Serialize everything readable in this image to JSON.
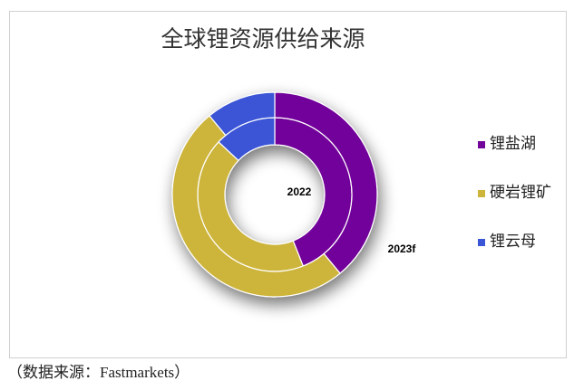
{
  "chart_data": {
    "type": "donut",
    "title": "全球锂资源供给来源",
    "categories": [
      "锂盐湖",
      "硬岩锂矿",
      "锂云母"
    ],
    "colors": [
      "#72049a",
      "#cdb43a",
      "#3a55d6"
    ],
    "series": [
      {
        "name": "2022",
        "values": [
          44,
          43,
          13
        ]
      },
      {
        "name": "2023f",
        "values": [
          39,
          50,
          11
        ]
      }
    ],
    "legend": "right",
    "source": "（数据来源：Fastmarkets）"
  }
}
